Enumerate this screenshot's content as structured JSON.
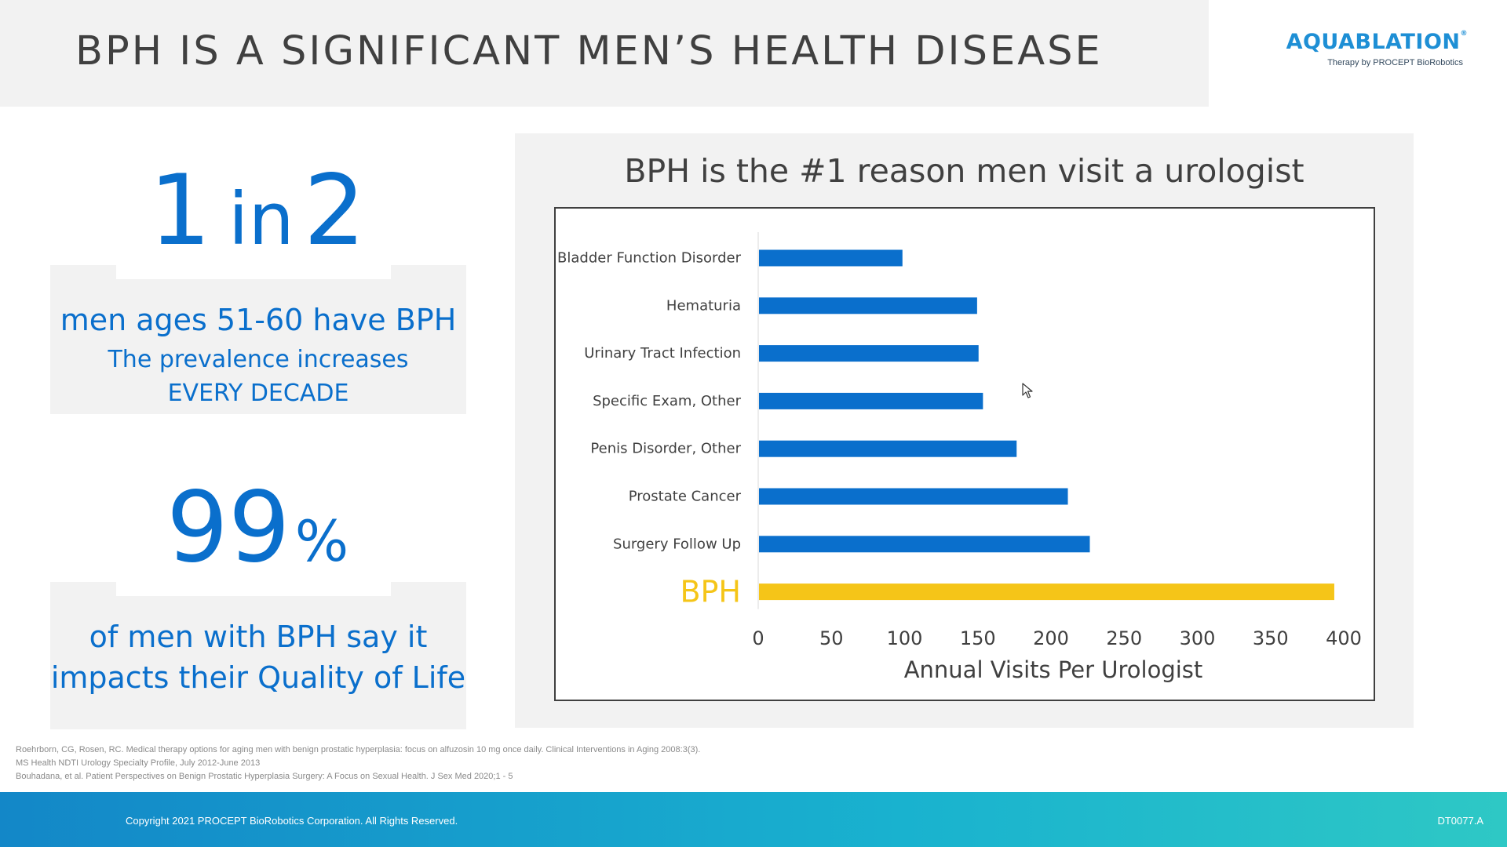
{
  "slide": {
    "title": "BPH IS A SIGNIFICANT MEN’S HEALTH DISEASE",
    "logo_text": "AQUABLATION",
    "logo_reg": "®",
    "logo_subtitle": "Therapy by PROCEPT BioRobotics"
  },
  "stats": [
    {
      "big_number": "1",
      "big_mid": "in",
      "big_last": "2",
      "lines": [
        "men ages 51-60 have BPH",
        "The prevalence increases",
        "EVERY DECADE"
      ]
    },
    {
      "big_number": "99",
      "big_unit": "%",
      "lines": [
        "of men with BPH say it",
        "impacts their Quality of Life"
      ]
    }
  ],
  "chart_data": {
    "type": "bar",
    "orientation": "horizontal",
    "title": "BPH is the #1 reason men visit a urologist",
    "xlabel": "Annual Visits Per Urologist",
    "ylabel": "",
    "categories": [
      "Bladder Function Disorder",
      "Hematuria",
      "Urinary Tract Infection",
      "Specific Exam, Other",
      "Penis Disorder, Other",
      "Prostate Cancer",
      "Surgery Follow Up",
      "BPH"
    ],
    "values": [
      98,
      149,
      150,
      153,
      176,
      211,
      226,
      393
    ],
    "colors": [
      "#0a6fcc",
      "#0a6fcc",
      "#0a6fcc",
      "#0a6fcc",
      "#0a6fcc",
      "#0a6fcc",
      "#0a6fcc",
      "#f5c518"
    ],
    "highlight_category": "BPH",
    "highlight_color": "#f5c518",
    "bar_color": "#0a6fcc",
    "xlim": [
      0,
      400
    ],
    "xticks": [
      0,
      50,
      100,
      150,
      200,
      250,
      300,
      350,
      400
    ],
    "grid": false,
    "legend": "none"
  },
  "references": [
    "Roehrborn, CG, Rosen, RC. Medical therapy options for aging men with benign prostatic hyperplasia: focus on alfuzosin 10 mg once daily. Clinical Interventions in Aging 2008:3(3).",
    "MS Health NDTI Urology Specialty Profile, July 2012-June 2013",
    "Bouhadana, et al.  Patient Perspectives on Benign Prostatic Hyperplasia Surgery: A Focus on Sexual Health. J Sex Med 2020;1 - 5"
  ],
  "footer": {
    "copyright": "Copyright 2021 PROCEPT BioRobotics Corporation. All Rights Reserved.",
    "doc_code": "DT0077.A"
  }
}
